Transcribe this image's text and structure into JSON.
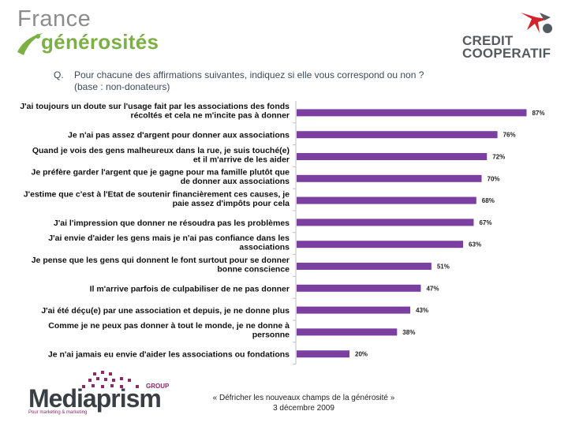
{
  "logos": {
    "france_generosites": {
      "line1": "France",
      "line2": "générosités"
    },
    "credit_cooperatif": {
      "line1": "CREDIT",
      "line2": "COOPERATIF"
    },
    "mediaprism": {
      "name": "Mediaprism",
      "group": "GROUP",
      "tagline": "Pour marketing & marketing"
    }
  },
  "question": {
    "label": "Q.",
    "text": "Pour chacune des affirmations suivantes, indiquez si elle vous correspond ou non ?",
    "base": "(base : non-donateurs)"
  },
  "footer": {
    "line1": "« Défricher les nouveaux champs de la générosité »",
    "line2": "3 décembre 2009"
  },
  "colors": {
    "bar": "#7b3fa0",
    "accent_green": "#7bb043",
    "accent_red": "#d2232a"
  },
  "chart_data": {
    "type": "bar",
    "orientation": "horizontal",
    "categories": [
      [
        "J'ai toujours un doute sur l'usage fait par les associations des fonds",
        "récoltés et cela ne m'incite pas à donner"
      ],
      [
        "Je n'ai pas assez d'argent pour donner aux associations"
      ],
      [
        "Quand je vois des gens malheureux dans la rue, je suis touché(e)",
        "et il m'arrive de les aider"
      ],
      [
        "Je préfère garder l'argent que je gagne pour ma famille plutôt que",
        "de donner aux associations"
      ],
      [
        "J'estime que c'est à l'Etat de soutenir financièrement ces causes, je",
        "paie assez d'impôts pour cela"
      ],
      [
        "J'ai l'impression que donner ne résoudra pas les problèmes"
      ],
      [
        "J'ai envie d'aider les gens mais je n'ai pas confiance dans les",
        "associations"
      ],
      [
        "Je pense que les gens qui donnent le font surtout pour se donner",
        "bonne conscience"
      ],
      [
        "Il m'arrive parfois de culpabiliser de ne pas donner"
      ],
      [
        "J'ai été déçu(e) par une association et depuis, je ne donne plus"
      ],
      [
        "Comme je ne peux pas donner à tout le monde, je ne donne à",
        "personne"
      ],
      [
        "Je n'ai jamais eu envie d'aider les associations ou fondations"
      ]
    ],
    "values": [
      87,
      76,
      72,
      70,
      68,
      67,
      63,
      51,
      47,
      43,
      38,
      20
    ],
    "value_labels": [
      "87%",
      "76%",
      "72%",
      "70%",
      "68%",
      "67%",
      "63%",
      "51%",
      "47%",
      "43%",
      "38%",
      "20%"
    ],
    "unit": "%",
    "xlim": [
      0,
      100
    ]
  }
}
